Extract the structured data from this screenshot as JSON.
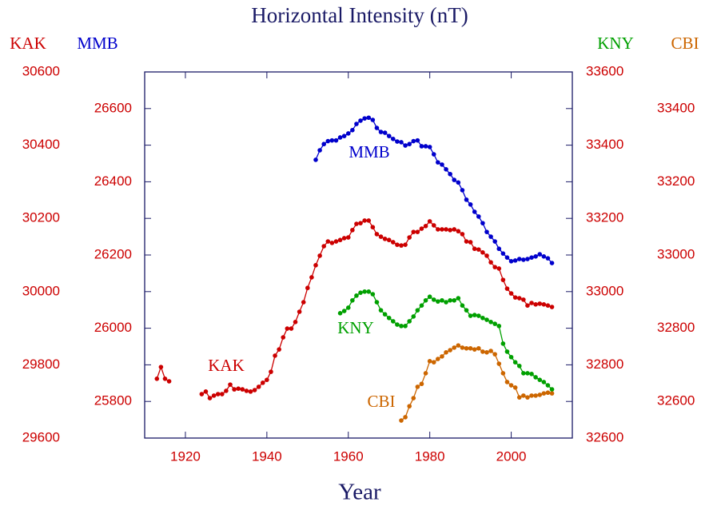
{
  "chart_data": {
    "type": "line",
    "title": "Horizontal Intensity (nT)",
    "x_label": "Year",
    "xlim": [
      1910,
      2015
    ],
    "xticks": [
      1920,
      1940,
      1960,
      1980,
      2000
    ],
    "series": [
      {
        "name": "KAK",
        "color": "#cc0000",
        "ylim": [
          29600,
          30600
        ],
        "yticks": [
          29600,
          29800,
          30000,
          30200,
          30400,
          30600
        ],
        "x": [
          1913,
          1914,
          1915,
          1916,
          1917,
          1918,
          1919,
          1920,
          1921,
          1922,
          1923,
          1924,
          1925,
          1926,
          1927,
          1928,
          1929,
          1930,
          1931,
          1932,
          1933,
          1934,
          1935,
          1936,
          1937,
          1938,
          1939,
          1940,
          1941,
          1942,
          1943,
          1944,
          1945,
          1946,
          1947,
          1948,
          1949,
          1950,
          1951,
          1952,
          1953,
          1954,
          1955,
          1956,
          1957,
          1958,
          1959,
          1960,
          1961,
          1962,
          1963,
          1964,
          1965,
          1966,
          1967,
          1968,
          1969,
          1970,
          1971,
          1972,
          1973,
          1974,
          1975,
          1976,
          1977,
          1978,
          1979,
          1980,
          1981,
          1982,
          1983,
          1984,
          1985,
          1986,
          1987,
          1988,
          1989,
          1990,
          1991,
          1992,
          1993,
          1994,
          1995,
          1996,
          1997,
          1998,
          1999,
          2000,
          2001,
          2002,
          2003,
          2004,
          2005,
          2006,
          2007,
          2008,
          2009,
          2010
        ],
        "values": [
          29762,
          29794,
          29762,
          29755,
          null,
          null,
          null,
          null,
          null,
          null,
          null,
          29720,
          29727,
          29709,
          29716,
          29720,
          29720,
          29729,
          29746,
          29733,
          29735,
          29733,
          29729,
          29727,
          29731,
          29740,
          29751,
          29759,
          29781,
          29825,
          29842,
          29875,
          29899,
          29899,
          29917,
          29945,
          29971,
          30010,
          30039,
          30072,
          30098,
          30124,
          30137,
          30133,
          30137,
          30141,
          30146,
          30148,
          30168,
          30185,
          30187,
          30194,
          30194,
          30176,
          30157,
          30150,
          30144,
          30141,
          30135,
          30128,
          30126,
          30128,
          30148,
          30163,
          30163,
          30172,
          30179,
          30192,
          30181,
          30170,
          30170,
          30170,
          30168,
          30170,
          30165,
          30157,
          30137,
          30135,
          30117,
          30115,
          30107,
          30098,
          30080,
          30067,
          30063,
          30032,
          30008,
          29995,
          29984,
          29982,
          29978,
          29962,
          29969,
          29965,
          29967,
          29965,
          29962,
          29958
        ]
      },
      {
        "name": "MMB",
        "color": "#0000cc",
        "ylim": [
          25700,
          26700
        ],
        "yticks": [
          25800,
          26000,
          26200,
          26400,
          26600
        ],
        "x": [
          1952,
          1953,
          1954,
          1955,
          1956,
          1957,
          1958,
          1959,
          1960,
          1961,
          1962,
          1963,
          1964,
          1965,
          1966,
          1967,
          1968,
          1969,
          1970,
          1971,
          1972,
          1973,
          1974,
          1975,
          1976,
          1977,
          1978,
          1979,
          1980,
          1981,
          1982,
          1983,
          1984,
          1985,
          1986,
          1987,
          1988,
          1989,
          1990,
          1991,
          1992,
          1993,
          1994,
          1995,
          1996,
          1997,
          1998,
          1999,
          2000,
          2001,
          2002,
          2003,
          2004,
          2005,
          2006,
          2007,
          2008,
          2009,
          2010
        ],
        "values": [
          26460,
          26486,
          26503,
          26511,
          26513,
          26513,
          26521,
          26525,
          26532,
          26541,
          26558,
          26567,
          26573,
          26575,
          26569,
          26547,
          26536,
          26534,
          26525,
          26517,
          26510,
          26508,
          26499,
          26503,
          26511,
          26513,
          26497,
          26497,
          26495,
          26475,
          26453,
          26447,
          26434,
          26421,
          26405,
          26398,
          26377,
          26351,
          26338,
          26318,
          26305,
          26287,
          26263,
          26250,
          26237,
          26217,
          26204,
          26193,
          26183,
          26185,
          26189,
          26187,
          26189,
          26193,
          26196,
          26202,
          26196,
          26191,
          26178
        ]
      },
      {
        "name": "KNY",
        "color": "#00a000",
        "ylim": [
          32600,
          33600
        ],
        "yticks": [
          32600,
          32800,
          33000,
          33200,
          33400,
          33600
        ],
        "x": [
          1958,
          1959,
          1960,
          1961,
          1962,
          1963,
          1964,
          1965,
          1966,
          1967,
          1968,
          1969,
          1970,
          1971,
          1972,
          1973,
          1974,
          1975,
          1976,
          1977,
          1978,
          1979,
          1980,
          1981,
          1982,
          1983,
          1984,
          1985,
          1986,
          1987,
          1988,
          1989,
          1990,
          1991,
          1992,
          1993,
          1994,
          1995,
          1996,
          1997,
          1998,
          1999,
          2000,
          2001,
          2002,
          2003,
          2004,
          2005,
          2006,
          2007,
          2008,
          2009,
          2010
        ],
        "values": [
          32941,
          32947,
          32956,
          32976,
          32989,
          32997,
          33000,
          33000,
          32993,
          32971,
          32949,
          32938,
          32928,
          32919,
          32910,
          32906,
          32906,
          32919,
          32932,
          32949,
          32962,
          32976,
          32986,
          32978,
          32973,
          32976,
          32971,
          32976,
          32976,
          32982,
          32962,
          32949,
          32934,
          32936,
          32934,
          32928,
          32923,
          32917,
          32912,
          32906,
          32858,
          32836,
          32821,
          32807,
          32797,
          32777,
          32777,
          32775,
          32766,
          32759,
          32753,
          32744,
          32733
        ]
      },
      {
        "name": "CBI",
        "color": "#cc6600",
        "ylim": [
          32500,
          33500
        ],
        "yticks": [
          32600,
          32800,
          33000,
          33200,
          33400
        ],
        "x": [
          1973,
          1974,
          1975,
          1976,
          1977,
          1978,
          1979,
          1980,
          1981,
          1982,
          1983,
          1984,
          1985,
          1986,
          1987,
          1988,
          1989,
          1990,
          1991,
          1992,
          1993,
          1994,
          1995,
          1996,
          1997,
          1998,
          1999,
          2000,
          2001,
          2002,
          2003,
          2004,
          2005,
          2006,
          2007,
          2008,
          2009,
          2010
        ],
        "values": [
          32548,
          32557,
          32587,
          32609,
          32640,
          32648,
          32677,
          32710,
          32707,
          32716,
          32723,
          32734,
          32740,
          32747,
          32753,
          32747,
          32745,
          32745,
          32742,
          32745,
          32736,
          32734,
          32738,
          32729,
          32703,
          32677,
          32653,
          32644,
          32638,
          32611,
          32616,
          32611,
          32616,
          32616,
          32618,
          32622,
          32624,
          32622
        ]
      }
    ]
  }
}
